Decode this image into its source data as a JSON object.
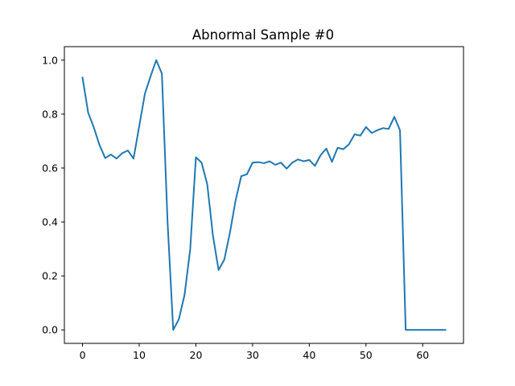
{
  "chart_data": {
    "type": "line",
    "title": "Abnormal Sample #0",
    "xlabel": "",
    "ylabel": "",
    "xlim": [
      -3.2,
      67.2
    ],
    "ylim": [
      -0.05,
      1.05
    ],
    "xticks": [
      0,
      10,
      20,
      30,
      40,
      50,
      60
    ],
    "xtick_labels": [
      "0",
      "10",
      "20",
      "30",
      "40",
      "50",
      "60"
    ],
    "yticks": [
      0.0,
      0.2,
      0.4,
      0.6,
      0.8,
      1.0
    ],
    "ytick_labels": [
      "0.0",
      "0.2",
      "0.4",
      "0.6",
      "0.8",
      "1.0"
    ],
    "grid": false,
    "line_color": "#1f77b4",
    "series": [
      {
        "x": [
          0,
          1,
          2,
          3,
          4,
          5,
          6,
          7,
          8,
          9,
          10,
          11,
          12,
          13,
          14,
          15,
          16,
          17,
          18,
          19,
          20,
          21,
          22,
          23,
          24,
          25,
          26,
          27,
          28,
          29,
          30,
          31,
          32,
          33,
          34,
          35,
          36,
          37,
          38,
          39,
          40,
          41,
          42,
          43,
          44,
          45,
          46,
          47,
          48,
          49,
          50,
          51,
          52,
          53,
          54,
          55,
          56,
          57,
          58,
          59,
          60,
          61,
          62,
          63,
          64
        ],
        "y": [
          0.935,
          0.805,
          0.75,
          0.685,
          0.637,
          0.65,
          0.635,
          0.655,
          0.665,
          0.635,
          0.755,
          0.875,
          0.94,
          1.0,
          0.95,
          0.4,
          0.0,
          0.04,
          0.13,
          0.3,
          0.64,
          0.62,
          0.54,
          0.35,
          0.222,
          0.26,
          0.36,
          0.48,
          0.57,
          0.577,
          0.62,
          0.622,
          0.618,
          0.625,
          0.612,
          0.62,
          0.598,
          0.62,
          0.632,
          0.625,
          0.63,
          0.608,
          0.648,
          0.672,
          0.623,
          0.675,
          0.67,
          0.688,
          0.725,
          0.72,
          0.752,
          0.73,
          0.74,
          0.748,
          0.745,
          0.79,
          0.74,
          0.0,
          0.0,
          0.0,
          0.0,
          0.0,
          0.0,
          0.0,
          0.0
        ]
      }
    ]
  }
}
